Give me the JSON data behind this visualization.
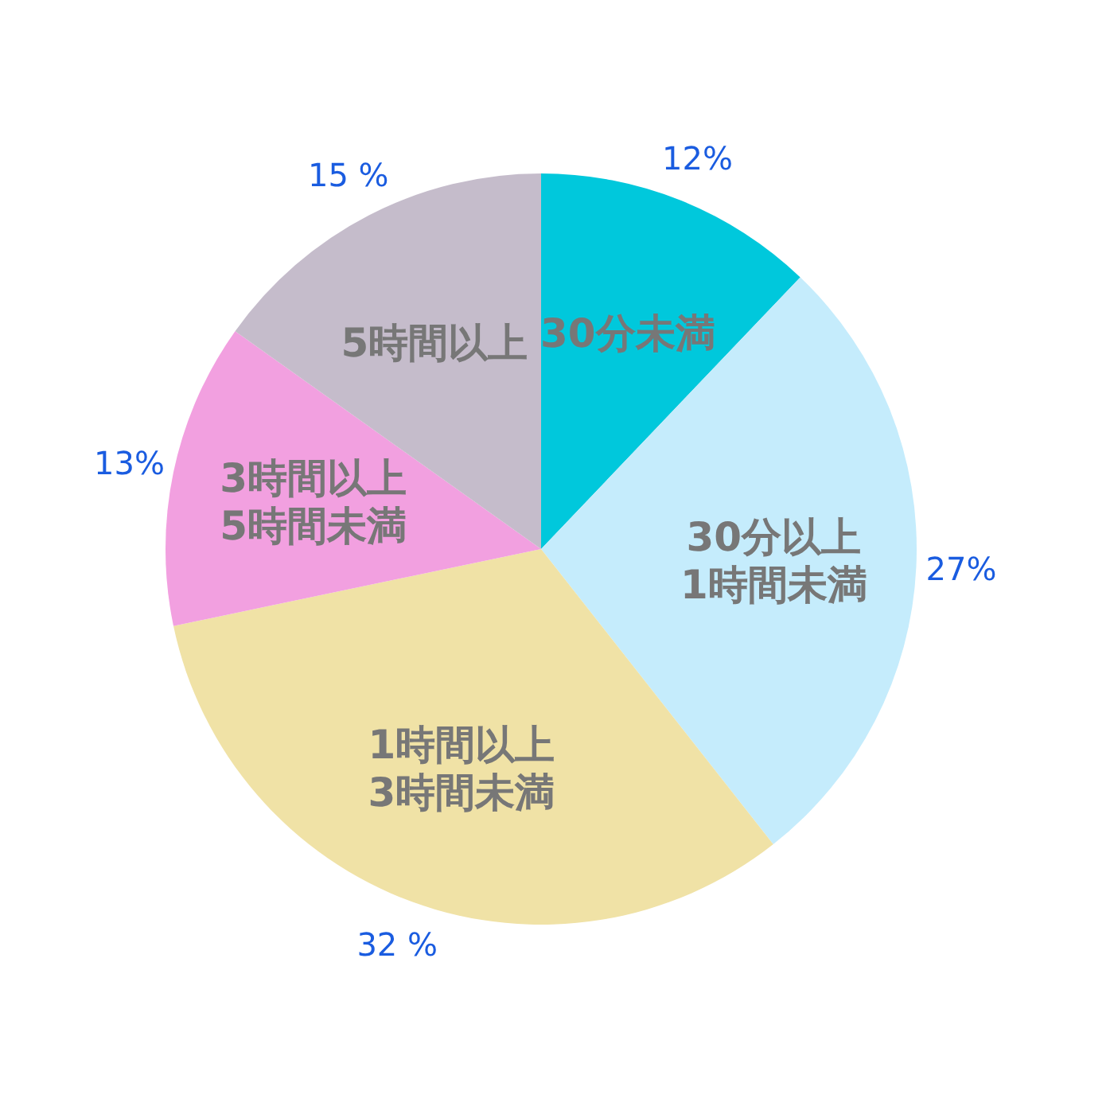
{
  "chart_data": {
    "type": "pie",
    "categories": [
      "30分未満",
      "30分以上1時間未満",
      "1時間以上3時間未満",
      "3時間以上5時間未満",
      "5時間以上"
    ],
    "values": [
      12,
      27,
      32,
      13,
      15
    ],
    "colors": [
      "#00c8dc",
      "#c5ecfc",
      "#f0e2a6",
      "#f2a0e0",
      "#c5bccb"
    ],
    "value_labels": [
      "12%",
      "27%",
      "32 %",
      "13%",
      "15 %"
    ]
  }
}
